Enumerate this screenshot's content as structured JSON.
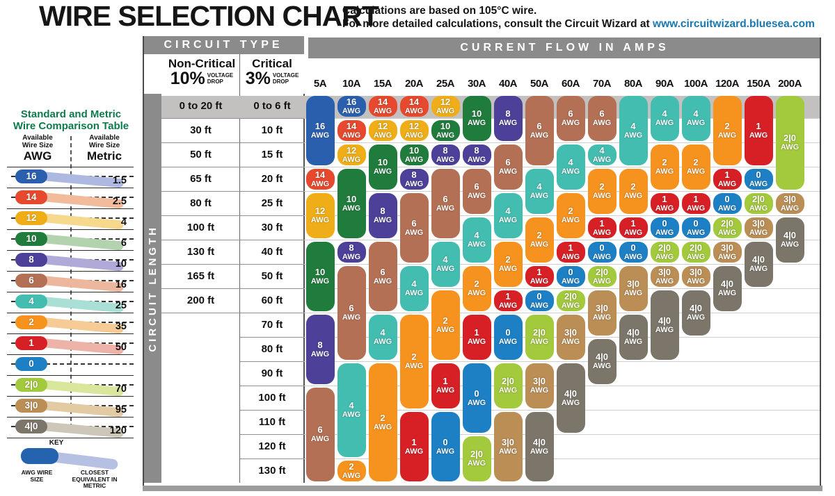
{
  "page": {
    "title": "WIRE SELECTION CHART",
    "subtitle_line1": "Calculations are based on 105°C wire.",
    "subtitle_line2": "For more detailed calculations, consult the Circuit Wizard at",
    "subtitle_link": "www.circuitwizard.bluesea.com",
    "link_color": "#1878b0",
    "title_green": "#0d7b4c"
  },
  "sidebar": {
    "title_line1": "Standard and Metric",
    "title_line2": "Wire Comparison Table",
    "left_header": "Available Wire Size",
    "left_unit": "AWG",
    "right_header": "Available Wire Size",
    "right_unit": "Metric",
    "rows": [
      {
        "awg": "16",
        "metric": "1.5"
      },
      {
        "awg": "14",
        "metric": "2.5"
      },
      {
        "awg": "12",
        "metric": "4"
      },
      {
        "awg": "10",
        "metric": "6"
      },
      {
        "awg": "8",
        "metric": "10"
      },
      {
        "awg": "6",
        "metric": "16"
      },
      {
        "awg": "4",
        "metric": "25"
      },
      {
        "awg": "2",
        "metric": "35"
      },
      {
        "awg": "1",
        "metric": "50"
      },
      {
        "awg": "0",
        "metric": ""
      },
      {
        "awg": "2|0",
        "metric": "70"
      },
      {
        "awg": "3|0",
        "metric": "95"
      },
      {
        "awg": "4|0",
        "metric": "120"
      }
    ],
    "key": {
      "heading": "KEY",
      "left_caption": "AWG WIRE SIZE",
      "right_caption": "CLOSEST EQUIVALENT IN METRIC"
    }
  },
  "table_headers": {
    "circuit_type": "CIRCUIT TYPE",
    "non_critical_title": "Non-Critical",
    "non_critical_pct": "10%",
    "critical_title": "Critical",
    "critical_pct": "3%",
    "voltage_word": "VOLTAGE",
    "drop_word": "DROP",
    "amps_header": "CURRENT FLOW IN AMPS",
    "circuit_length": "CIRCUIT LENGTH",
    "awg_unit": "AWG"
  },
  "colors": {
    "16": {
      "pill": "#2a5fae",
      "band": "#aeb9e2"
    },
    "14": {
      "pill": "#e6492d",
      "band": "#f2bb9b"
    },
    "12": {
      "pill": "#efae18",
      "band": "#f6d98d"
    },
    "10": {
      "pill": "#207c3c",
      "band": "#b2d3ae"
    },
    "8": {
      "pill": "#4c4098",
      "band": "#b0aad8"
    },
    "6": {
      "pill": "#b37055",
      "band": "#ecb79c"
    },
    "4": {
      "pill": "#43bdb0",
      "band": "#aadfd5"
    },
    "2": {
      "pill": "#f6921e",
      "band": "#f6cb96"
    },
    "1": {
      "pill": "#d71f26",
      "band": "#eeb3a8"
    },
    "0": {
      "pill": "#1d80c4",
      "band": ""
    },
    "2|0": {
      "pill": "#a3c93c",
      "band": "#d9e79c"
    },
    "3|0": {
      "pill": "#ba8e55",
      "band": "#e2cba3"
    },
    "4|0": {
      "pill": "#7c766a",
      "band": "#cdc7ba"
    }
  },
  "chart_data": {
    "type": "table",
    "title": "WIRE SELECTION CHART",
    "column_axis": "CURRENT FLOW IN AMPS",
    "row_axis": "CIRCUIT LENGTH",
    "amps": [
      "5A",
      "10A",
      "15A",
      "20A",
      "25A",
      "30A",
      "40A",
      "50A",
      "60A",
      "70A",
      "80A",
      "90A",
      "100A",
      "120A",
      "150A",
      "200A"
    ],
    "length_rows": [
      {
        "non_critical_10pct": "0 to 20 ft",
        "critical_3pct": "0 to 6 ft"
      },
      {
        "non_critical_10pct": "30 ft",
        "critical_3pct": "10 ft"
      },
      {
        "non_critical_10pct": "50 ft",
        "critical_3pct": "15 ft"
      },
      {
        "non_critical_10pct": "65 ft",
        "critical_3pct": "20 ft"
      },
      {
        "non_critical_10pct": "80 ft",
        "critical_3pct": "25 ft"
      },
      {
        "non_critical_10pct": "100 ft",
        "critical_3pct": "30 ft"
      },
      {
        "non_critical_10pct": "130 ft",
        "critical_3pct": "40 ft"
      },
      {
        "non_critical_10pct": "165 ft",
        "critical_3pct": "50 ft"
      },
      {
        "non_critical_10pct": "200 ft",
        "critical_3pct": "60 ft"
      },
      {
        "non_critical_10pct": "",
        "critical_3pct": "70 ft"
      },
      {
        "non_critical_10pct": "",
        "critical_3pct": "80 ft"
      },
      {
        "non_critical_10pct": "",
        "critical_3pct": "90 ft"
      },
      {
        "non_critical_10pct": "",
        "critical_3pct": "100 ft"
      },
      {
        "non_critical_10pct": "",
        "critical_3pct": "110 ft"
      },
      {
        "non_critical_10pct": "",
        "critical_3pct": "120 ft"
      },
      {
        "non_critical_10pct": "",
        "critical_3pct": "130 ft"
      }
    ],
    "wire_gauge_segments": [
      {
        "amp": "5A",
        "segments": [
          {
            "gauge": "16",
            "from_row": 1,
            "to_row": 3
          },
          {
            "gauge": "14",
            "from_row": 4,
            "to_row": 4
          },
          {
            "gauge": "12",
            "from_row": 5,
            "to_row": 6
          },
          {
            "gauge": "10",
            "from_row": 7,
            "to_row": 9
          },
          {
            "gauge": "8",
            "from_row": 10,
            "to_row": 12
          },
          {
            "gauge": "6",
            "from_row": 13,
            "to_row": 16
          }
        ]
      },
      {
        "amp": "10A",
        "segments": [
          {
            "gauge": "16",
            "from_row": 1,
            "to_row": 1
          },
          {
            "gauge": "14",
            "from_row": 2,
            "to_row": 2
          },
          {
            "gauge": "12",
            "from_row": 3,
            "to_row": 3
          },
          {
            "gauge": "10",
            "from_row": 4,
            "to_row": 6
          },
          {
            "gauge": "8",
            "from_row": 7,
            "to_row": 7
          },
          {
            "gauge": "6",
            "from_row": 8,
            "to_row": 11
          },
          {
            "gauge": "4",
            "from_row": 12,
            "to_row": 15
          },
          {
            "gauge": "2",
            "from_row": 16,
            "to_row": 16
          }
        ]
      },
      {
        "amp": "15A",
        "segments": [
          {
            "gauge": "14",
            "from_row": 1,
            "to_row": 1
          },
          {
            "gauge": "12",
            "from_row": 2,
            "to_row": 2
          },
          {
            "gauge": "10",
            "from_row": 3,
            "to_row": 4
          },
          {
            "gauge": "8",
            "from_row": 5,
            "to_row": 6
          },
          {
            "gauge": "6",
            "from_row": 7,
            "to_row": 9
          },
          {
            "gauge": "4",
            "from_row": 10,
            "to_row": 11
          },
          {
            "gauge": "2",
            "from_row": 12,
            "to_row": 16
          }
        ]
      },
      {
        "amp": "20A",
        "segments": [
          {
            "gauge": "14",
            "from_row": 1,
            "to_row": 1
          },
          {
            "gauge": "12",
            "from_row": 2,
            "to_row": 2
          },
          {
            "gauge": "10",
            "from_row": 3,
            "to_row": 3
          },
          {
            "gauge": "8",
            "from_row": 4,
            "to_row": 4
          },
          {
            "gauge": "6",
            "from_row": 5,
            "to_row": 7
          },
          {
            "gauge": "4",
            "from_row": 8,
            "to_row": 9
          },
          {
            "gauge": "2",
            "from_row": 10,
            "to_row": 13
          },
          {
            "gauge": "1",
            "from_row": 14,
            "to_row": 16
          }
        ]
      },
      {
        "amp": "25A",
        "segments": [
          {
            "gauge": "12",
            "from_row": 1,
            "to_row": 1
          },
          {
            "gauge": "10",
            "from_row": 2,
            "to_row": 2
          },
          {
            "gauge": "8",
            "from_row": 3,
            "to_row": 3
          },
          {
            "gauge": "6",
            "from_row": 4,
            "to_row": 6
          },
          {
            "gauge": "4",
            "from_row": 7,
            "to_row": 8
          },
          {
            "gauge": "2",
            "from_row": 9,
            "to_row": 11
          },
          {
            "gauge": "1",
            "from_row": 12,
            "to_row": 13
          },
          {
            "gauge": "0",
            "from_row": 14,
            "to_row": 16
          }
        ]
      },
      {
        "amp": "30A",
        "segments": [
          {
            "gauge": "10",
            "from_row": 1,
            "to_row": 2
          },
          {
            "gauge": "8",
            "from_row": 3,
            "to_row": 3
          },
          {
            "gauge": "6",
            "from_row": 4,
            "to_row": 5
          },
          {
            "gauge": "4",
            "from_row": 6,
            "to_row": 7
          },
          {
            "gauge": "2",
            "from_row": 8,
            "to_row": 9
          },
          {
            "gauge": "1",
            "from_row": 10,
            "to_row": 11
          },
          {
            "gauge": "0",
            "from_row": 12,
            "to_row": 14
          },
          {
            "gauge": "2|0",
            "from_row": 15,
            "to_row": 16
          }
        ]
      },
      {
        "amp": "40A",
        "segments": [
          {
            "gauge": "8",
            "from_row": 1,
            "to_row": 2
          },
          {
            "gauge": "6",
            "from_row": 3,
            "to_row": 4
          },
          {
            "gauge": "4",
            "from_row": 5,
            "to_row": 6
          },
          {
            "gauge": "2",
            "from_row": 7,
            "to_row": 8
          },
          {
            "gauge": "1",
            "from_row": 9,
            "to_row": 9
          },
          {
            "gauge": "0",
            "from_row": 10,
            "to_row": 11
          },
          {
            "gauge": "2|0",
            "from_row": 12,
            "to_row": 13
          },
          {
            "gauge": "3|0",
            "from_row": 14,
            "to_row": 16
          }
        ]
      },
      {
        "amp": "50A",
        "segments": [
          {
            "gauge": "6",
            "from_row": 1,
            "to_row": 3
          },
          {
            "gauge": "4",
            "from_row": 4,
            "to_row": 5
          },
          {
            "gauge": "2",
            "from_row": 6,
            "to_row": 7
          },
          {
            "gauge": "1",
            "from_row": 8,
            "to_row": 8
          },
          {
            "gauge": "0",
            "from_row": 9,
            "to_row": 9
          },
          {
            "gauge": "2|0",
            "from_row": 10,
            "to_row": 11
          },
          {
            "gauge": "3|0",
            "from_row": 12,
            "to_row": 13
          },
          {
            "gauge": "4|0",
            "from_row": 14,
            "to_row": 16
          }
        ]
      },
      {
        "amp": "60A",
        "segments": [
          {
            "gauge": "6",
            "from_row": 1,
            "to_row": 2
          },
          {
            "gauge": "4",
            "from_row": 3,
            "to_row": 4
          },
          {
            "gauge": "2",
            "from_row": 5,
            "to_row": 6
          },
          {
            "gauge": "1",
            "from_row": 7,
            "to_row": 7
          },
          {
            "gauge": "0",
            "from_row": 8,
            "to_row": 8
          },
          {
            "gauge": "2|0",
            "from_row": 9,
            "to_row": 9
          },
          {
            "gauge": "3|0",
            "from_row": 10,
            "to_row": 11
          },
          {
            "gauge": "4|0",
            "from_row": 12,
            "to_row": 14
          }
        ]
      },
      {
        "amp": "70A",
        "segments": [
          {
            "gauge": "6",
            "from_row": 1,
            "to_row": 2
          },
          {
            "gauge": "4",
            "from_row": 3,
            "to_row": 3
          },
          {
            "gauge": "2",
            "from_row": 4,
            "to_row": 5
          },
          {
            "gauge": "1",
            "from_row": 6,
            "to_row": 6
          },
          {
            "gauge": "0",
            "from_row": 7,
            "to_row": 7
          },
          {
            "gauge": "2|0",
            "from_row": 8,
            "to_row": 8
          },
          {
            "gauge": "3|0",
            "from_row": 9,
            "to_row": 10
          },
          {
            "gauge": "4|0",
            "from_row": 11,
            "to_row": 12
          }
        ]
      },
      {
        "amp": "80A",
        "segments": [
          {
            "gauge": "4",
            "from_row": 1,
            "to_row": 3
          },
          {
            "gauge": "2",
            "from_row": 4,
            "to_row": 5
          },
          {
            "gauge": "1",
            "from_row": 6,
            "to_row": 6
          },
          {
            "gauge": "0",
            "from_row": 7,
            "to_row": 7
          },
          {
            "gauge": "3|0",
            "from_row": 8,
            "to_row": 9
          },
          {
            "gauge": "4|0",
            "from_row": 10,
            "to_row": 11
          }
        ]
      },
      {
        "amp": "90A",
        "segments": [
          {
            "gauge": "4",
            "from_row": 1,
            "to_row": 2
          },
          {
            "gauge": "2",
            "from_row": 3,
            "to_row": 4
          },
          {
            "gauge": "1",
            "from_row": 5,
            "to_row": 5
          },
          {
            "gauge": "0",
            "from_row": 6,
            "to_row": 6
          },
          {
            "gauge": "2|0",
            "from_row": 7,
            "to_row": 7
          },
          {
            "gauge": "3|0",
            "from_row": 8,
            "to_row": 8
          },
          {
            "gauge": "4|0",
            "from_row": 9,
            "to_row": 11
          }
        ]
      },
      {
        "amp": "100A",
        "segments": [
          {
            "gauge": "4",
            "from_row": 1,
            "to_row": 2
          },
          {
            "gauge": "2",
            "from_row": 3,
            "to_row": 4
          },
          {
            "gauge": "1",
            "from_row": 5,
            "to_row": 5
          },
          {
            "gauge": "0",
            "from_row": 6,
            "to_row": 6
          },
          {
            "gauge": "2|0",
            "from_row": 7,
            "to_row": 7
          },
          {
            "gauge": "3|0",
            "from_row": 8,
            "to_row": 8
          },
          {
            "gauge": "4|0",
            "from_row": 9,
            "to_row": 10
          }
        ]
      },
      {
        "amp": "120A",
        "segments": [
          {
            "gauge": "2",
            "from_row": 1,
            "to_row": 3
          },
          {
            "gauge": "1",
            "from_row": 4,
            "to_row": 4
          },
          {
            "gauge": "0",
            "from_row": 5,
            "to_row": 5
          },
          {
            "gauge": "2|0",
            "from_row": 6,
            "to_row": 6
          },
          {
            "gauge": "3|0",
            "from_row": 7,
            "to_row": 7
          },
          {
            "gauge": "4|0",
            "from_row": 8,
            "to_row": 9
          }
        ]
      },
      {
        "amp": "150A",
        "segments": [
          {
            "gauge": "1",
            "from_row": 1,
            "to_row": 3
          },
          {
            "gauge": "0",
            "from_row": 4,
            "to_row": 4
          },
          {
            "gauge": "2|0",
            "from_row": 5,
            "to_row": 5
          },
          {
            "gauge": "3|0",
            "from_row": 6,
            "to_row": 6
          },
          {
            "gauge": "4|0",
            "from_row": 7,
            "to_row": 8
          }
        ]
      },
      {
        "amp": "200A",
        "segments": [
          {
            "gauge": "2|0",
            "from_row": 1,
            "to_row": 4
          },
          {
            "gauge": "3|0",
            "from_row": 5,
            "to_row": 5
          },
          {
            "gauge": "4|0",
            "from_row": 6,
            "to_row": 7
          }
        ]
      }
    ]
  }
}
